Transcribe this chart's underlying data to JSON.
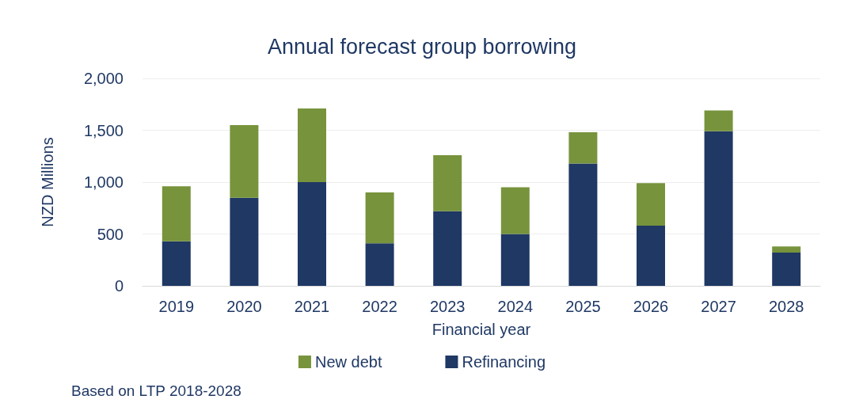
{
  "chart_data": {
    "type": "bar",
    "title": "Annual forecast group borrowing",
    "xlabel": "Financial year",
    "ylabel": "NZD Millions",
    "annotations": [
      "Based on LTP 2018-2028"
    ],
    "categories": [
      "2019",
      "2020",
      "2021",
      "2022",
      "2023",
      "2024",
      "2025",
      "2026",
      "2027",
      "2028"
    ],
    "stacked": true,
    "series": [
      {
        "name": "Refinancing",
        "color": "#1f3864",
        "values": [
          430,
          850,
          1000,
          410,
          720,
          500,
          1180,
          580,
          1490,
          320
        ]
      },
      {
        "name": "New debt",
        "color": "#77933c",
        "values": [
          530,
          700,
          710,
          490,
          540,
          450,
          300,
          410,
          200,
          60
        ]
      }
    ],
    "ylim": [
      0,
      2000
    ],
    "yticks": [
      0,
      500,
      {
        "value": 1000,
        "label": "1,000"
      },
      {
        "value": 1500,
        "label": "1,500"
      },
      {
        "value": 2000,
        "label": "2,000"
      }
    ],
    "grid": "y",
    "legend": "bottom"
  }
}
